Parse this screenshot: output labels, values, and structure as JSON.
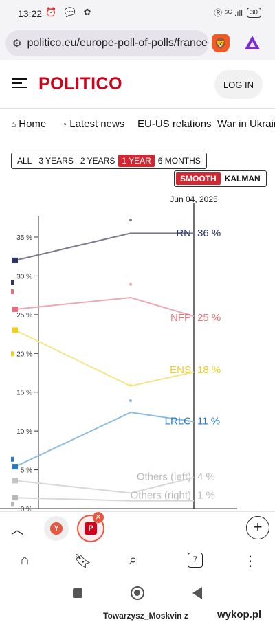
{
  "status_bar": {
    "time": "13:22",
    "left_icons": "⏰ 💬 ✿",
    "right_text": "Ⓡ ⁵ᴳ .ıll",
    "battery": "30"
  },
  "browser": {
    "url": "politico.eu/europe-poll-of-polls/france",
    "brave_icon_glyph": "🦁"
  },
  "header": {
    "logo": "POLITICO",
    "login_label": "LOG IN"
  },
  "nav": {
    "items": [
      {
        "label": "Home",
        "icon": "home-icon"
      },
      {
        "label": "Latest news",
        "icon": "clock-icon"
      },
      {
        "label": "EU-US relations"
      },
      {
        "label": "War in Ukraine"
      }
    ]
  },
  "time_filter": {
    "options": [
      "ALL",
      "3 YEARS",
      "2 YEARS",
      "1 YEAR",
      "6 MONTHS"
    ],
    "active": "1 YEAR"
  },
  "smoothing": {
    "options": [
      "SMOOTH",
      "KALMAN"
    ],
    "active": "SMOOTH"
  },
  "chart_data": {
    "type": "line",
    "cursor_label": "Jun 04, 2025",
    "y_ticks": [
      "35 %",
      "30 %",
      "25 %",
      "20 %",
      "15 %",
      "10 %",
      "5 %",
      "0 %"
    ],
    "ylim": [
      0,
      35
    ],
    "series": [
      {
        "name": "RN",
        "label": "36 %",
        "color": "#7a7c8e",
        "marker_color": "#2b3566",
        "values": [
          32.0,
          35.5,
          35.5
        ],
        "dots": [
          29.2,
          36.5
        ]
      },
      {
        "name": "NFP",
        "label": "25 %",
        "color": "#ecaab0",
        "marker_color": "#e4707b",
        "values": [
          25.7,
          27.2,
          24.8
        ],
        "dots": [
          28.0,
          28.2
        ]
      },
      {
        "name": "ENS",
        "label": "18 %",
        "color": "#f5e58a",
        "marker_color": "#f2cf1f",
        "values": [
          23.0,
          15.8,
          17.6
        ],
        "dots": [
          20.0,
          15.2
        ]
      },
      {
        "name": "LRLC",
        "label": "11 %",
        "color": "#8dbde0",
        "marker_color": "#2a78c8",
        "values": [
          5.4,
          12.4,
          11.2
        ],
        "dots": [
          6.4,
          13.2
        ]
      },
      {
        "name": "Others (left)",
        "label": "4 %",
        "color": "#d8d8d8",
        "marker_color": "#c4c4c4",
        "values": [
          3.6,
          2.0,
          4.0
        ],
        "dots": []
      },
      {
        "name": "Others (right)",
        "label": "1 %",
        "color": "#d8d8d8",
        "marker_color": "#b8b8b8",
        "values": [
          1.4,
          1.0,
          1.0
        ],
        "dots": [
          0.6
        ]
      }
    ]
  },
  "bottom": {
    "tab_y_letter": "Y",
    "tab_p_letter": "P",
    "tab_count": "7"
  },
  "watermark": {
    "user": "Towarzysz_Moskvin",
    "suffix": "z",
    "site": "wykop.pl"
  }
}
